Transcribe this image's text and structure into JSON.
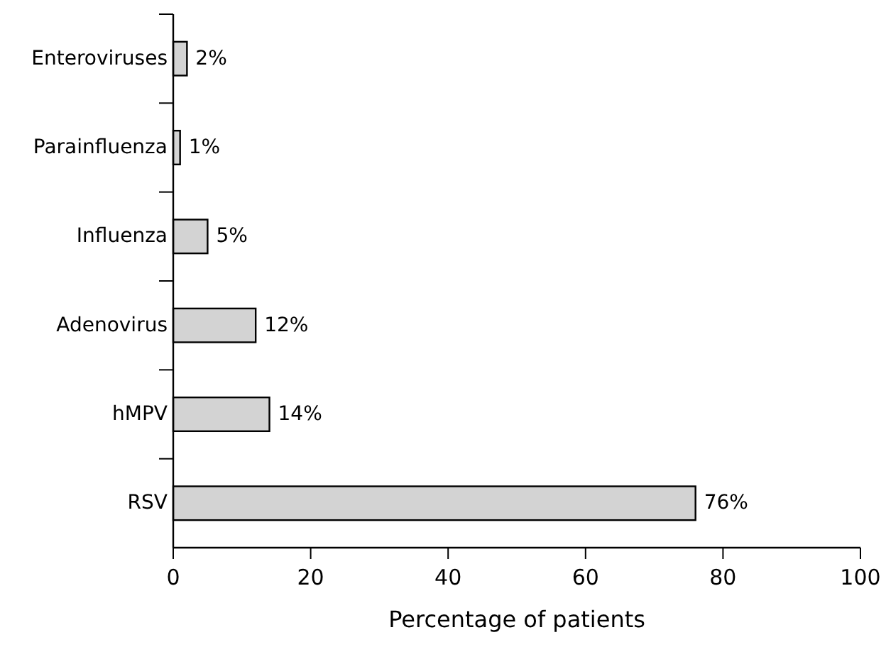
{
  "chart_data": {
    "type": "bar",
    "orientation": "horizontal",
    "xlabel": "Percentage of patients",
    "categories": [
      "Enteroviruses",
      "Parainfluenza",
      "Influenza",
      "Adenovirus",
      "hMPV",
      "RSV"
    ],
    "values": [
      2,
      1,
      5,
      12,
      14,
      76
    ],
    "value_labels": [
      "2%",
      "1%",
      "5%",
      "12%",
      "14%",
      "76%"
    ],
    "color": "#d3d3d3",
    "xlim": [
      0,
      100
    ],
    "xticks": [
      0,
      20,
      40,
      60,
      80,
      100
    ],
    "grid": false
  }
}
